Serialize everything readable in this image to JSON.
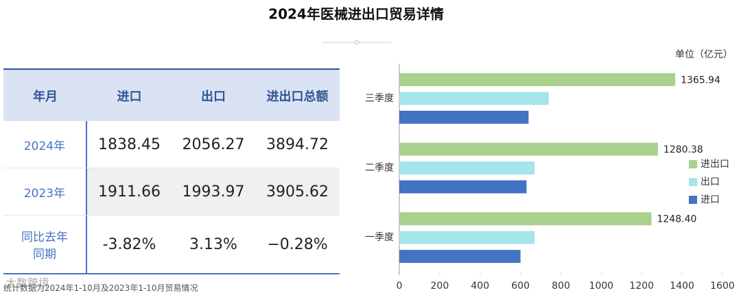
{
  "title": "2024年医械进出口贸易详情",
  "table": {
    "header": [
      "年月",
      "进口",
      "出口",
      "进出口总额"
    ],
    "rows": [
      [
        "2024年",
        "1838.45",
        "2056.27",
        "3894.72"
      ],
      [
        "2023年",
        "1911.66",
        "1993.97",
        "3905.62"
      ],
      [
        "同比去年同期",
        "-3.82%",
        "3.13%",
        "−0.28%"
      ]
    ]
  },
  "footnote": "统计数据为2024年1-10月及2023年1-10月贸易情况",
  "logo": "大数跨境",
  "chart_data": {
    "type": "barh",
    "unit_label": "单位（亿元）",
    "categories": [
      "三季度",
      "二季度",
      "一季度"
    ],
    "series": [
      {
        "name": "进出口",
        "color": "#a9d18e",
        "values": [
          1365.94,
          1280.38,
          1248.4
        ],
        "value_labels": [
          "1365.94",
          "1280.38",
          "1248.40"
        ]
      },
      {
        "name": "出口",
        "color": "#a5e4ea",
        "values": [
          740,
          670,
          670
        ]
      },
      {
        "name": "进口",
        "color": "#4472c4",
        "values": [
          640,
          630,
          600
        ]
      }
    ],
    "xlim": [
      0,
      1600
    ],
    "xticks": [
      0,
      200,
      400,
      600,
      800,
      1000,
      1200,
      1400,
      1600
    ],
    "grid": false,
    "legend": "right"
  }
}
